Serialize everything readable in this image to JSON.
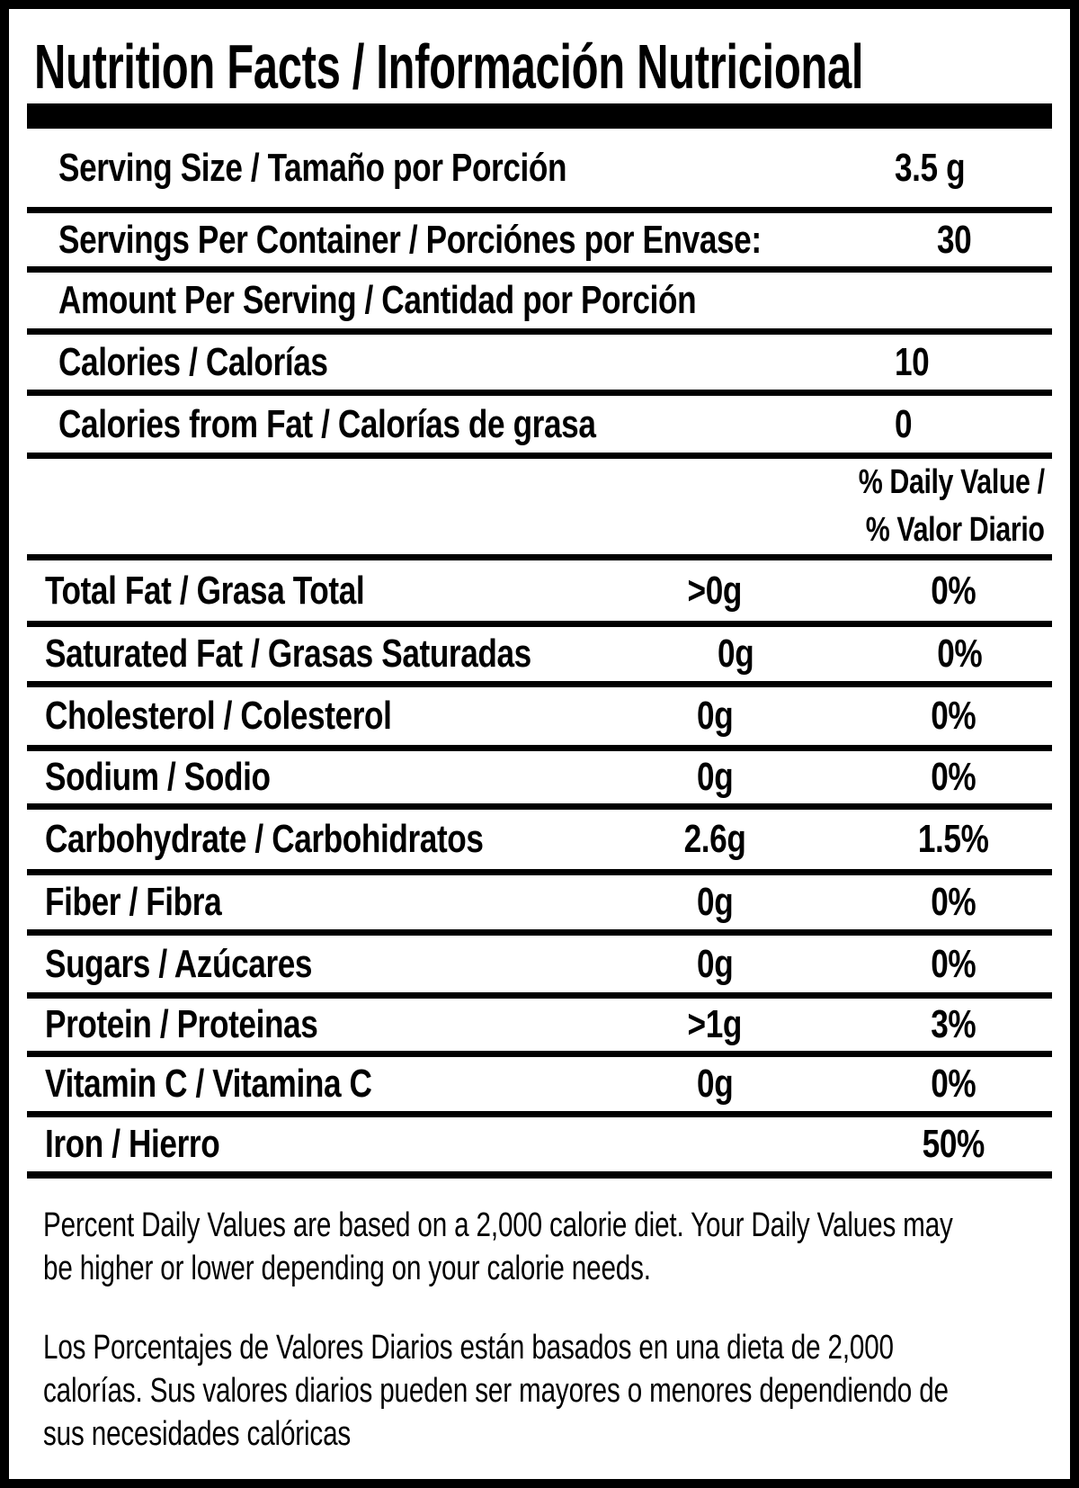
{
  "title": "Nutrition Facts / Información Nutricional",
  "serving_rows": [
    {
      "label": "Serving Size / Tamaño por Porción",
      "value": "3.5 g"
    },
    {
      "label": "Servings Per Container / Porciónes por Envase:",
      "value": "30"
    },
    {
      "label": "Amount Per Serving / Cantidad por Porción",
      "value": ""
    },
    {
      "label": "Calories / Calorías",
      "value": "10"
    },
    {
      "label": "Calories from Fat / Calorías de grasa",
      "value": "0"
    }
  ],
  "daily_value_header": {
    "line1": "% Daily Value /",
    "line2": "% Valor Diario"
  },
  "nutrient_rows": [
    {
      "label": "Total Fat / Grasa Total",
      "amount": ">0g",
      "percent": "0%"
    },
    {
      "label": "Saturated Fat / Grasas Saturadas",
      "amount": "0g",
      "percent": "0%"
    },
    {
      "label": "Cholesterol / Colesterol",
      "amount": "0g",
      "percent": "0%"
    },
    {
      "label": "Sodium / Sodio",
      "amount": "0g",
      "percent": "0%"
    },
    {
      "label": "Carbohydrate / Carbohidratos",
      "amount": "2.6g",
      "percent": "1.5%"
    },
    {
      "label": "Fiber / Fibra",
      "amount": "0g",
      "percent": "0%"
    },
    {
      "label": "Sugars / Azúcares",
      "amount": "0g",
      "percent": "0%"
    },
    {
      "label": "Protein / Proteinas",
      "amount": ">1g",
      "percent": "3%"
    },
    {
      "label": "Vitamin C / Vitamina C",
      "amount": "0g",
      "percent": "0%"
    },
    {
      "label": "Iron / Hierro",
      "amount": "",
      "percent": "50%"
    }
  ],
  "footnotes": {
    "english": {
      "line1": "Percent Daily Values are based on a 2,000 calorie diet. Your Daily Values may",
      "line2": "be higher or lower depending on your calorie needs."
    },
    "spanish": {
      "line1": "Los Porcentajes de Valores Diarios están basados en una dieta de 2,000",
      "line2": "calorías. Sus valores diarios pueden ser mayores o menores dependiendo de",
      "line3": "sus necesidades calóricas"
    }
  },
  "colors": {
    "text": "#000000",
    "background": "#ffffff",
    "rule": "#000000"
  }
}
